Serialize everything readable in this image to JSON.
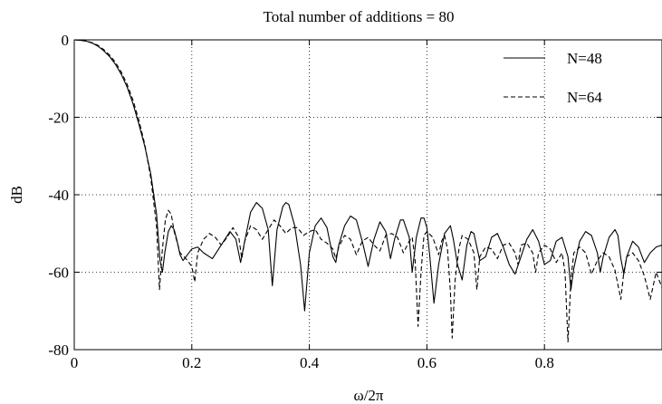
{
  "chart_data": {
    "type": "line",
    "title": "Total number of additions = 80",
    "xlabel": "ω/2π",
    "ylabel": "dB",
    "xlim": [
      0,
      1
    ],
    "ylim": [
      -80,
      0
    ],
    "grid": true,
    "legend_position": "top-right",
    "x_ticks": [
      0,
      0.2,
      0.4,
      0.6,
      0.8,
      1
    ],
    "x_tick_labels": [
      "0",
      "0.2",
      "0.4",
      "0.6",
      "0.8",
      ""
    ],
    "y_ticks": [
      0,
      -20,
      -40,
      -60,
      -80
    ],
    "y_tick_labels": [
      "0",
      "-20",
      "-40",
      "-60",
      "-80"
    ],
    "series": [
      {
        "name": "N=48",
        "style": "solid",
        "points": [
          [
            0.0,
            0.0
          ],
          [
            0.01,
            -0.1
          ],
          [
            0.02,
            -0.3
          ],
          [
            0.03,
            -0.8
          ],
          [
            0.04,
            -1.6
          ],
          [
            0.05,
            -2.8
          ],
          [
            0.06,
            -4.3
          ],
          [
            0.07,
            -6.3
          ],
          [
            0.08,
            -8.9
          ],
          [
            0.09,
            -12.2
          ],
          [
            0.1,
            -16.5
          ],
          [
            0.11,
            -21.8
          ],
          [
            0.12,
            -27.5
          ],
          [
            0.13,
            -34.5
          ],
          [
            0.14,
            -45.0
          ],
          [
            0.146,
            -57.0
          ],
          [
            0.15,
            -60.0
          ],
          [
            0.154,
            -55.0
          ],
          [
            0.16,
            -49.5
          ],
          [
            0.165,
            -48.0
          ],
          [
            0.17,
            -49.0
          ],
          [
            0.175,
            -52.0
          ],
          [
            0.18,
            -55.5
          ],
          [
            0.185,
            -57.0
          ],
          [
            0.19,
            -56.0
          ],
          [
            0.2,
            -54.0
          ],
          [
            0.21,
            -53.5
          ],
          [
            0.22,
            -55.0
          ],
          [
            0.235,
            -56.5
          ],
          [
            0.25,
            -53.0
          ],
          [
            0.265,
            -49.5
          ],
          [
            0.275,
            -51.5
          ],
          [
            0.283,
            -57.5
          ],
          [
            0.29,
            -52.0
          ],
          [
            0.3,
            -44.5
          ],
          [
            0.31,
            -42.0
          ],
          [
            0.32,
            -43.5
          ],
          [
            0.33,
            -49.0
          ],
          [
            0.337,
            -63.5
          ],
          [
            0.345,
            -49.0
          ],
          [
            0.355,
            -43.0
          ],
          [
            0.36,
            -42.0
          ],
          [
            0.365,
            -42.5
          ],
          [
            0.375,
            -48.0
          ],
          [
            0.385,
            -58.0
          ],
          [
            0.392,
            -70.0
          ],
          [
            0.4,
            -55.0
          ],
          [
            0.41,
            -48.0
          ],
          [
            0.42,
            -46.0
          ],
          [
            0.43,
            -48.5
          ],
          [
            0.44,
            -56.0
          ],
          [
            0.445,
            -57.5
          ],
          [
            0.45,
            -53.0
          ],
          [
            0.46,
            -48.0
          ],
          [
            0.47,
            -45.5
          ],
          [
            0.48,
            -46.5
          ],
          [
            0.49,
            -52.0
          ],
          [
            0.5,
            -58.5
          ],
          [
            0.51,
            -51.5
          ],
          [
            0.52,
            -47.0
          ],
          [
            0.53,
            -49.5
          ],
          [
            0.538,
            -56.5
          ],
          [
            0.545,
            -51.5
          ],
          [
            0.555,
            -46.5
          ],
          [
            0.56,
            -46.5
          ],
          [
            0.57,
            -51.0
          ],
          [
            0.575,
            -60.0
          ],
          [
            0.582,
            -51.0
          ],
          [
            0.59,
            -46.0
          ],
          [
            0.595,
            -46.0
          ],
          [
            0.6,
            -48.5
          ],
          [
            0.605,
            -56.0
          ],
          [
            0.612,
            -68.0
          ],
          [
            0.62,
            -58.0
          ],
          [
            0.63,
            -50.0
          ],
          [
            0.64,
            -48.0
          ],
          [
            0.645,
            -51.5
          ],
          [
            0.652,
            -58.0
          ],
          [
            0.66,
            -62.0
          ],
          [
            0.668,
            -53.0
          ],
          [
            0.675,
            -49.5
          ],
          [
            0.68,
            -50.0
          ],
          [
            0.69,
            -57.0
          ],
          [
            0.7,
            -56.0
          ],
          [
            0.71,
            -51.0
          ],
          [
            0.72,
            -50.0
          ],
          [
            0.73,
            -53.5
          ],
          [
            0.74,
            -58.0
          ],
          [
            0.75,
            -60.5
          ],
          [
            0.76,
            -56.0
          ],
          [
            0.77,
            -51.5
          ],
          [
            0.78,
            -49.0
          ],
          [
            0.79,
            -52.0
          ],
          [
            0.8,
            -58.0
          ],
          [
            0.81,
            -57.0
          ],
          [
            0.82,
            -52.0
          ],
          [
            0.83,
            -51.0
          ],
          [
            0.84,
            -56.0
          ],
          [
            0.845,
            -64.5
          ],
          [
            0.85,
            -59.0
          ],
          [
            0.86,
            -52.0
          ],
          [
            0.87,
            -49.5
          ],
          [
            0.88,
            -50.5
          ],
          [
            0.89,
            -55.0
          ],
          [
            0.895,
            -60.0
          ],
          [
            0.9,
            -56.0
          ],
          [
            0.91,
            -51.0
          ],
          [
            0.92,
            -49.0
          ],
          [
            0.925,
            -50.5
          ],
          [
            0.93,
            -56.5
          ],
          [
            0.935,
            -60.5
          ],
          [
            0.94,
            -56.0
          ],
          [
            0.95,
            -52.0
          ],
          [
            0.96,
            -53.5
          ],
          [
            0.97,
            -57.5
          ],
          [
            0.98,
            -55.0
          ],
          [
            0.99,
            -53.5
          ],
          [
            1.0,
            -53.0
          ]
        ]
      },
      {
        "name": "N=64",
        "style": "dashed",
        "points": [
          [
            0.0,
            0.0
          ],
          [
            0.01,
            -0.1
          ],
          [
            0.02,
            -0.3
          ],
          [
            0.03,
            -0.7
          ],
          [
            0.04,
            -1.4
          ],
          [
            0.05,
            -2.5
          ],
          [
            0.06,
            -3.9
          ],
          [
            0.07,
            -5.8
          ],
          [
            0.08,
            -8.3
          ],
          [
            0.09,
            -11.5
          ],
          [
            0.1,
            -15.6
          ],
          [
            0.11,
            -20.8
          ],
          [
            0.12,
            -27.0
          ],
          [
            0.13,
            -35.5
          ],
          [
            0.14,
            -48.0
          ],
          [
            0.145,
            -64.5
          ],
          [
            0.15,
            -54.0
          ],
          [
            0.155,
            -46.5
          ],
          [
            0.16,
            -44.0
          ],
          [
            0.165,
            -45.0
          ],
          [
            0.17,
            -49.5
          ],
          [
            0.18,
            -55.0
          ],
          [
            0.19,
            -56.5
          ],
          [
            0.2,
            -58.5
          ],
          [
            0.205,
            -62.5
          ],
          [
            0.21,
            -55.0
          ],
          [
            0.22,
            -51.5
          ],
          [
            0.23,
            -50.0
          ],
          [
            0.24,
            -51.0
          ],
          [
            0.25,
            -53.0
          ],
          [
            0.26,
            -51.0
          ],
          [
            0.27,
            -48.5
          ],
          [
            0.28,
            -51.0
          ],
          [
            0.285,
            -56.5
          ],
          [
            0.29,
            -52.0
          ],
          [
            0.3,
            -48.0
          ],
          [
            0.31,
            -49.0
          ],
          [
            0.32,
            -51.5
          ],
          [
            0.33,
            -49.0
          ],
          [
            0.34,
            -46.5
          ],
          [
            0.35,
            -48.0
          ],
          [
            0.36,
            -50.0
          ],
          [
            0.37,
            -48.5
          ],
          [
            0.38,
            -48.5
          ],
          [
            0.39,
            -50.5
          ],
          [
            0.4,
            -49.5
          ],
          [
            0.41,
            -49.0
          ],
          [
            0.42,
            -51.5
          ],
          [
            0.43,
            -52.5
          ],
          [
            0.44,
            -54.0
          ],
          [
            0.445,
            -56.5
          ],
          [
            0.45,
            -53.5
          ],
          [
            0.46,
            -50.5
          ],
          [
            0.47,
            -51.5
          ],
          [
            0.48,
            -55.5
          ],
          [
            0.49,
            -52.0
          ],
          [
            0.5,
            -51.0
          ],
          [
            0.51,
            -53.0
          ],
          [
            0.52,
            -54.5
          ],
          [
            0.53,
            -50.5
          ],
          [
            0.54,
            -50.0
          ],
          [
            0.55,
            -51.0
          ],
          [
            0.56,
            -55.0
          ],
          [
            0.57,
            -52.0
          ],
          [
            0.575,
            -51.0
          ],
          [
            0.58,
            -57.0
          ],
          [
            0.585,
            -74.0
          ],
          [
            0.59,
            -60.0
          ],
          [
            0.595,
            -50.5
          ],
          [
            0.6,
            -49.5
          ],
          [
            0.61,
            -51.0
          ],
          [
            0.62,
            -55.5
          ],
          [
            0.625,
            -52.0
          ],
          [
            0.63,
            -50.5
          ],
          [
            0.635,
            -54.0
          ],
          [
            0.64,
            -65.0
          ],
          [
            0.643,
            -77.0
          ],
          [
            0.648,
            -62.0
          ],
          [
            0.655,
            -53.5
          ],
          [
            0.66,
            -50.5
          ],
          [
            0.67,
            -51.5
          ],
          [
            0.68,
            -55.0
          ],
          [
            0.685,
            -64.5
          ],
          [
            0.69,
            -56.0
          ],
          [
            0.7,
            -53.5
          ],
          [
            0.71,
            -54.0
          ],
          [
            0.72,
            -56.5
          ],
          [
            0.73,
            -53.0
          ],
          [
            0.74,
            -52.5
          ],
          [
            0.75,
            -55.0
          ],
          [
            0.755,
            -58.0
          ],
          [
            0.76,
            -53.0
          ],
          [
            0.77,
            -52.5
          ],
          [
            0.78,
            -55.0
          ],
          [
            0.785,
            -60.0
          ],
          [
            0.79,
            -55.0
          ],
          [
            0.8,
            -53.0
          ],
          [
            0.81,
            -54.0
          ],
          [
            0.82,
            -57.5
          ],
          [
            0.83,
            -55.0
          ],
          [
            0.835,
            -60.0
          ],
          [
            0.84,
            -78.0
          ],
          [
            0.845,
            -62.0
          ],
          [
            0.85,
            -55.0
          ],
          [
            0.86,
            -53.5
          ],
          [
            0.87,
            -55.0
          ],
          [
            0.88,
            -60.5
          ],
          [
            0.89,
            -57.0
          ],
          [
            0.9,
            -55.0
          ],
          [
            0.91,
            -56.0
          ],
          [
            0.92,
            -59.5
          ],
          [
            0.93,
            -67.0
          ],
          [
            0.935,
            -60.0
          ],
          [
            0.94,
            -56.0
          ],
          [
            0.95,
            -55.0
          ],
          [
            0.96,
            -57.0
          ],
          [
            0.97,
            -61.0
          ],
          [
            0.98,
            -67.0
          ],
          [
            0.99,
            -60.0
          ],
          [
            1.0,
            -64.0
          ]
        ]
      }
    ]
  }
}
